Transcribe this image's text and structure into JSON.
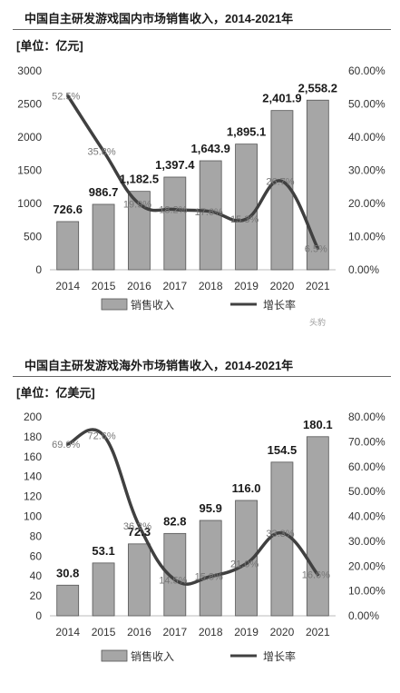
{
  "charts": [
    {
      "title": "中国自主研发游戏国内市场销售收入，2014-2021年",
      "unit": "[单位：亿元]",
      "watermark": "头豹"
    },
    {
      "title": "中国自主研发游戏海外市场销售收入，2014-2021年",
      "unit": "[单位：亿美元]",
      "watermark": ""
    }
  ],
  "chart_data": [
    {
      "type": "bar",
      "categories": [
        "2014",
        "2015",
        "2016",
        "2017",
        "2018",
        "2019",
        "2020",
        "2021"
      ],
      "series": [
        {
          "name": "销售收入",
          "type": "bar",
          "axis": "left",
          "values": [
            726.6,
            986.7,
            1182.5,
            1397.4,
            1643.9,
            1895.1,
            2401.9,
            2558.2
          ],
          "labels": [
            "726.6",
            "986.7",
            "1,182.5",
            "1,397.4",
            "1,643.9",
            "1,895.1",
            "2,401.9",
            "2,558.2"
          ]
        },
        {
          "name": "增长率",
          "type": "line",
          "axis": "right",
          "values": [
            52.5,
            35.8,
            19.9,
            18.2,
            17.6,
            15.3,
            26.7,
            6.5
          ],
          "labels": [
            "52.5%",
            "35.8%",
            "19.9%",
            "18.2%",
            "17.6%",
            "15.3%",
            "26.7%",
            "6.5%"
          ]
        }
      ],
      "ylim": [
        0,
        3000
      ],
      "yticks": [
        "0",
        "500",
        "1000",
        "1500",
        "2000",
        "2500",
        "3000"
      ],
      "y2lim": [
        0,
        60
      ],
      "y2ticks": [
        "0.00%",
        "10.00%",
        "20.00%",
        "30.00%",
        "40.00%",
        "50.00%",
        "60.00%"
      ],
      "legend_position": "bottom",
      "colors": {
        "bar": "#a6a6a6",
        "bar_edge": "#555555",
        "line": "#404040"
      }
    },
    {
      "type": "bar",
      "categories": [
        "2014",
        "2015",
        "2016",
        "2017",
        "2018",
        "2019",
        "2020",
        "2021"
      ],
      "series": [
        {
          "name": "销售收入",
          "type": "bar",
          "axis": "left",
          "values": [
            30.8,
            53.1,
            72.3,
            82.8,
            95.9,
            116.0,
            154.5,
            180.1
          ],
          "labels": [
            "30.8",
            "53.1",
            "72.3",
            "82.8",
            "95.9",
            "116.0",
            "154.5",
            "180.1"
          ]
        },
        {
          "name": "增长率",
          "type": "line",
          "axis": "right",
          "values": [
            69.0,
            72.6,
            36.2,
            14.5,
            15.8,
            21.0,
            33.3,
            16.6
          ],
          "labels": [
            "69.0%",
            "72.6%",
            "36.2%",
            "14.5%",
            "15.8%",
            "21.0%",
            "33.3%",
            "16.6%"
          ]
        }
      ],
      "ylim": [
        0,
        200
      ],
      "yticks": [
        "0",
        "20",
        "40",
        "60",
        "80",
        "100",
        "120",
        "140",
        "160",
        "180",
        "200"
      ],
      "y2lim": [
        0,
        80
      ],
      "y2ticks": [
        "0.00%",
        "10.00%",
        "20.00%",
        "30.00%",
        "40.00%",
        "50.00%",
        "60.00%",
        "70.00%",
        "80.00%"
      ],
      "legend_position": "bottom",
      "colors": {
        "bar": "#a6a6a6",
        "bar_edge": "#555555",
        "line": "#404040"
      }
    }
  ]
}
